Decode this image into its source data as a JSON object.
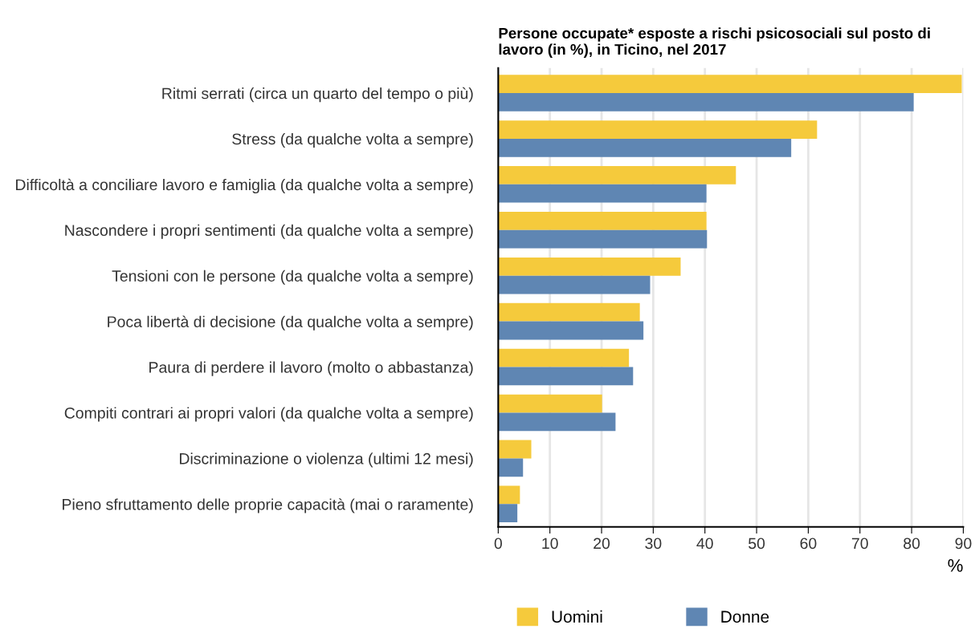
{
  "chart_data": {
    "type": "bar",
    "orientation": "horizontal",
    "title": "Persone occupate* esposte a rischi psicosociali sul posto di\nlavoro (in %), in Ticino, nel 2017",
    "xlabel": "%",
    "categories": [
      "Ritmi serrati (circa un quarto del tempo o più)",
      "Stress (da qualche volta a sempre)",
      "Difficoltà a conciliare lavoro e famiglia (da qualche volta a sempre)",
      "Nascondere i propri sentimenti (da qualche volta a sempre)",
      "Tensioni con le persone (da qualche volta a sempre)",
      "Poca libertà di decisione (da qualche volta a sempre)",
      "Paura di perdere il lavoro (molto o abbastanza)",
      "Compiti contrari ai propri valori (da qualche volta a sempre)",
      "Discriminazione o violenza (ultimi 12 mesi)",
      "Pieno sfruttamento delle proprie capacità (mai o raramente)"
    ],
    "series": [
      {
        "name": "Uomini",
        "color": "#f5ca3c",
        "values": [
          89.7,
          61.7,
          46.0,
          40.3,
          35.3,
          27.4,
          25.3,
          20.1,
          6.4,
          4.2
        ]
      },
      {
        "name": "Donne",
        "color": "#5f86b3",
        "values": [
          80.4,
          56.7,
          40.3,
          40.4,
          29.4,
          28.1,
          26.1,
          22.7,
          4.8,
          3.7
        ]
      }
    ],
    "xlim": [
      0,
      90
    ],
    "xticks": [
      0,
      10,
      20,
      30,
      40,
      50,
      60,
      70,
      80,
      90
    ],
    "grid": "x",
    "legend": "bottom"
  }
}
